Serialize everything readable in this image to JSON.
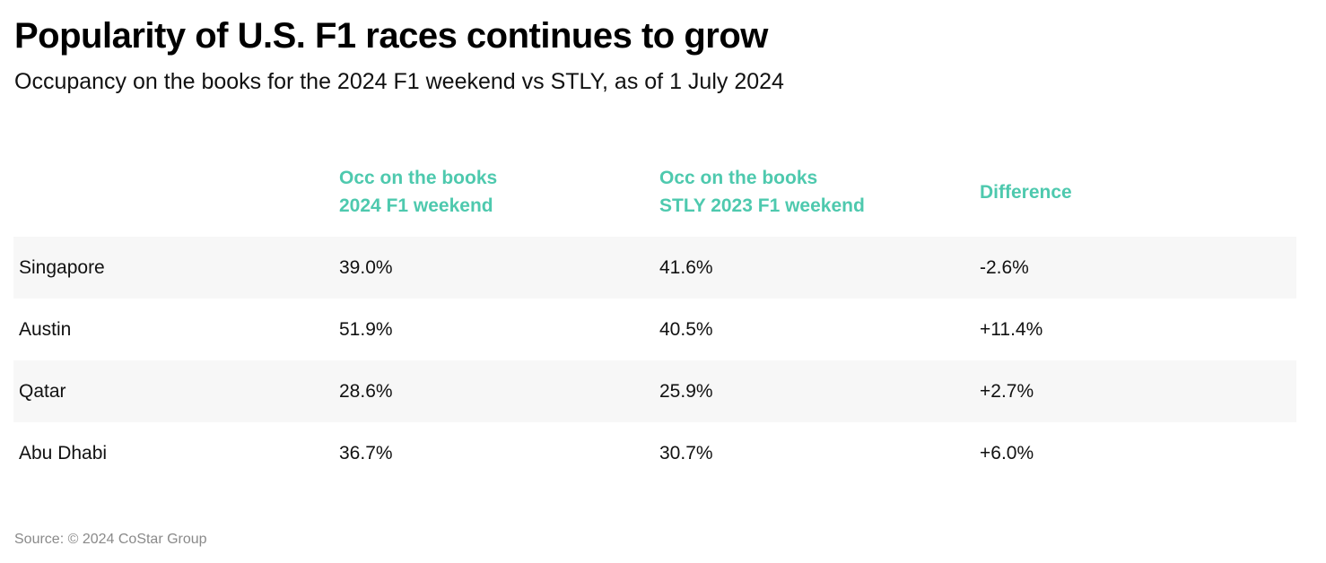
{
  "title": "Popularity of U.S. F1 races continues to grow",
  "subtitle": "Occupancy on the books for the 2024 F1 weekend vs STLY, as of 1 July 2024",
  "source": "Source: © 2024 CoStar Group",
  "colors": {
    "header_accent": "#4ec9ae",
    "row_shade": "#f7f7f7"
  },
  "chart_data": {
    "type": "table",
    "title": "Popularity of U.S. F1 races continues to grow",
    "subtitle": "Occupancy on the books for the 2024 F1 weekend vs STLY, as of 1 July 2024",
    "columns": [
      {
        "line1": "",
        "line2": ""
      },
      {
        "line1": "Occ on the books",
        "line2": "2024 F1 weekend"
      },
      {
        "line1": "Occ on the books",
        "line2": "STLY 2023 F1 weekend"
      },
      {
        "line1": "Difference",
        "line2": ""
      }
    ],
    "rows": [
      {
        "city": "Singapore",
        "occ_2024": "39.0%",
        "occ_stly_2023": "41.6%",
        "difference": "-2.6%"
      },
      {
        "city": "Austin",
        "occ_2024": "51.9%",
        "occ_stly_2023": "40.5%",
        "difference": "+11.4%"
      },
      {
        "city": "Qatar",
        "occ_2024": "28.6%",
        "occ_stly_2023": "25.9%",
        "difference": "+2.7%"
      },
      {
        "city": "Abu Dhabi",
        "occ_2024": "36.7%",
        "occ_stly_2023": "30.7%",
        "difference": "+6.0%"
      }
    ]
  }
}
